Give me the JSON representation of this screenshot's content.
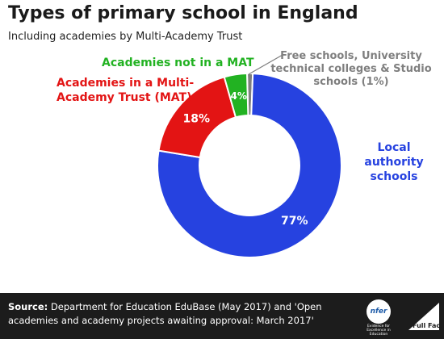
{
  "chart_data": {
    "type": "pie",
    "title": "Types of primary school in England",
    "subtitle": "Including academies by Multi-Academy Trust",
    "slices": [
      {
        "label": "Free schools, University technical colleges & Studio schools (1%)",
        "value": 1,
        "color": "#7f7f7f",
        "data_label": ""
      },
      {
        "label": "Local authority schools",
        "value": 77,
        "color": "#2642e0",
        "data_label": "77%"
      },
      {
        "label": "Academies in a Multi-Academy Trust (MAT)",
        "value": 18,
        "color": "#e31414",
        "data_label": "18%"
      },
      {
        "label": "Academies not in a MAT",
        "value": 4,
        "color": "#22b222",
        "data_label": "4%"
      }
    ],
    "label_lines": {
      "free": [
        "Free schools, University",
        "technical colleges & Studio",
        "schools (1%)"
      ],
      "la": [
        "Local",
        "authority",
        "schools"
      ],
      "mat": [
        "Academies in a Multi-",
        "Academy Trust (MAT)"
      ],
      "notmat": [
        "Academies not in a MAT"
      ]
    }
  },
  "footer": {
    "source_bold": "Source:",
    "source_text": "Department for Education EduBase (May 2017) and 'Open academies and academy projects awaiting approval: March 2017'",
    "nfer_logo_text": "nfer",
    "nfer_tagline": "Evidence for Excellence in Education",
    "fullfact_logo_text": "Full Fact"
  },
  "colors": {
    "free": "#7f7f7f",
    "la": "#2642e0",
    "mat": "#e31414",
    "notmat": "#22b222",
    "footer_bg": "#1c1c1c"
  }
}
